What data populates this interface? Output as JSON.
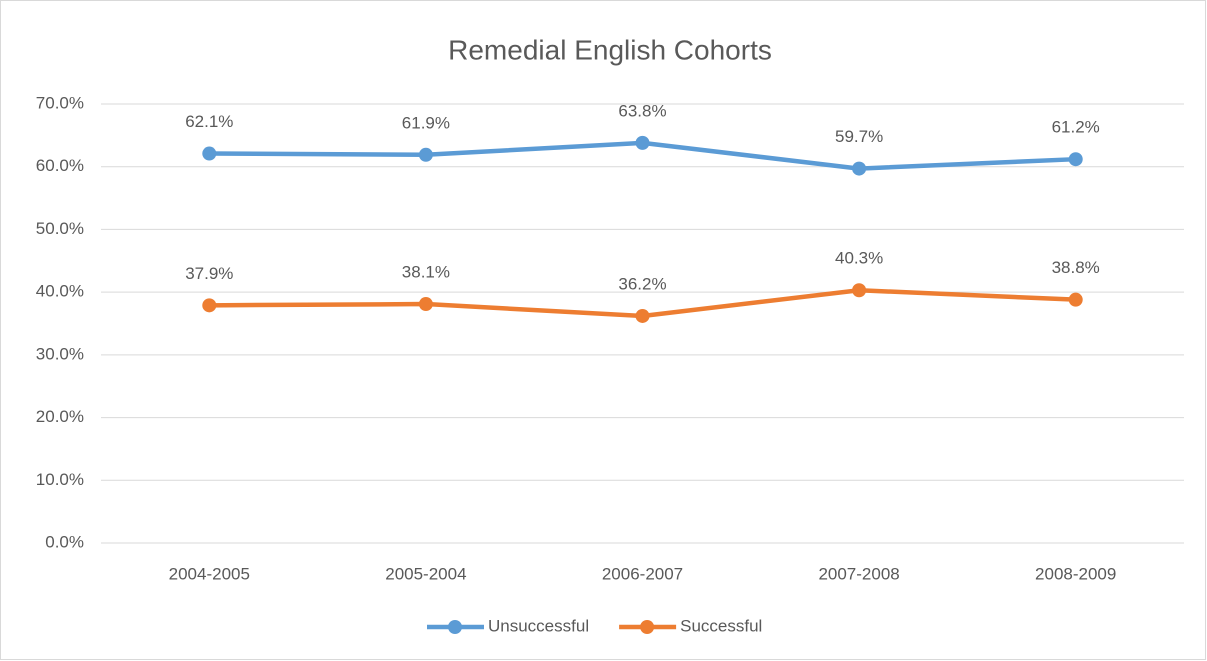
{
  "chart_data": {
    "type": "line",
    "title": "Remedial English Cohorts",
    "categories": [
      "2004-2005",
      "2005-2004",
      "2006-2007",
      "2007-2008",
      "2008-2009"
    ],
    "series": [
      {
        "name": "Unsuccessful",
        "color": "#5b9bd5",
        "values": [
          62.1,
          61.9,
          63.8,
          59.7,
          61.2
        ],
        "value_labels": [
          "62.1%",
          "61.9%",
          "63.8%",
          "59.7%",
          "61.2%"
        ]
      },
      {
        "name": "Successful",
        "color": "#ed7d31",
        "values": [
          37.9,
          38.1,
          36.2,
          40.3,
          38.8
        ],
        "value_labels": [
          "37.9%",
          "38.1%",
          "36.2%",
          "40.3%",
          "38.8%"
        ]
      }
    ],
    "ylim": [
      0,
      70
    ],
    "yticks": [
      {
        "value": 0,
        "label": "0.0%"
      },
      {
        "value": 10,
        "label": "10.0%"
      },
      {
        "value": 20,
        "label": "20.0%"
      },
      {
        "value": 30,
        "label": "30.0%"
      },
      {
        "value": 40,
        "label": "40.0%"
      },
      {
        "value": 50,
        "label": "50.0%"
      },
      {
        "value": 60,
        "label": "60.0%"
      },
      {
        "value": 70,
        "label": "70.0%"
      }
    ],
    "grid": true,
    "legend": "bottom"
  }
}
